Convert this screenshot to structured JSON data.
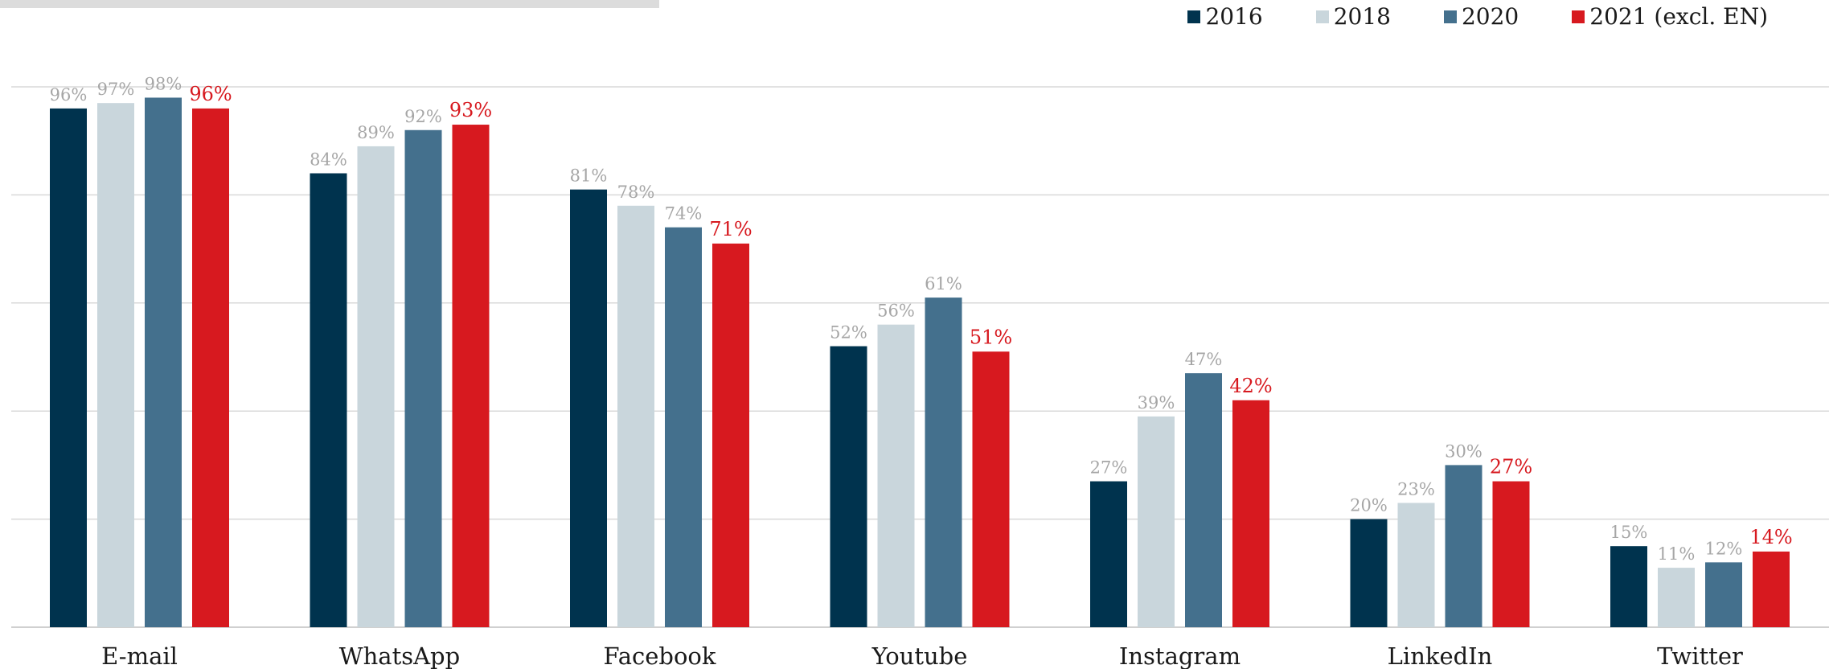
{
  "chart_data": {
    "type": "bar",
    "title": "",
    "xlabel": "",
    "ylabel": "",
    "ylim": [
      0,
      100
    ],
    "grid": true,
    "legend_position": "top-right",
    "categories": [
      "E-mail",
      "WhatsApp",
      "Facebook",
      "Youtube",
      "Instagram",
      "LinkedIn",
      "Twitter"
    ],
    "series": [
      {
        "name": "2016",
        "color": "#00334e",
        "values": [
          96,
          84,
          81,
          52,
          27,
          20,
          15
        ],
        "labels": [
          "96%",
          "84%",
          "81%",
          "52%",
          "27%",
          "20%",
          "15%"
        ]
      },
      {
        "name": "2018",
        "color": "#c9d6dc",
        "values": [
          97,
          89,
          78,
          56,
          39,
          23,
          11
        ],
        "labels": [
          "97%",
          "89%",
          "78%",
          "56%",
          "39%",
          "23%",
          "11%"
        ]
      },
      {
        "name": "2020",
        "color": "#44708d",
        "values": [
          98,
          92,
          74,
          61,
          47,
          30,
          12
        ],
        "labels": [
          "98%",
          "92%",
          "74%",
          "61%",
          "47%",
          "30%",
          "12%"
        ]
      },
      {
        "name": "2021 (excl. EN)",
        "color": "#d7191f",
        "values": [
          96,
          93,
          71,
          51,
          42,
          27,
          14
        ],
        "labels": [
          "96%",
          "93%",
          "71%",
          "51%",
          "42%",
          "27%",
          "14%"
        ]
      }
    ],
    "label_colors": {
      "default": "#a6a6a6",
      "highlight": "#d7191f"
    }
  }
}
